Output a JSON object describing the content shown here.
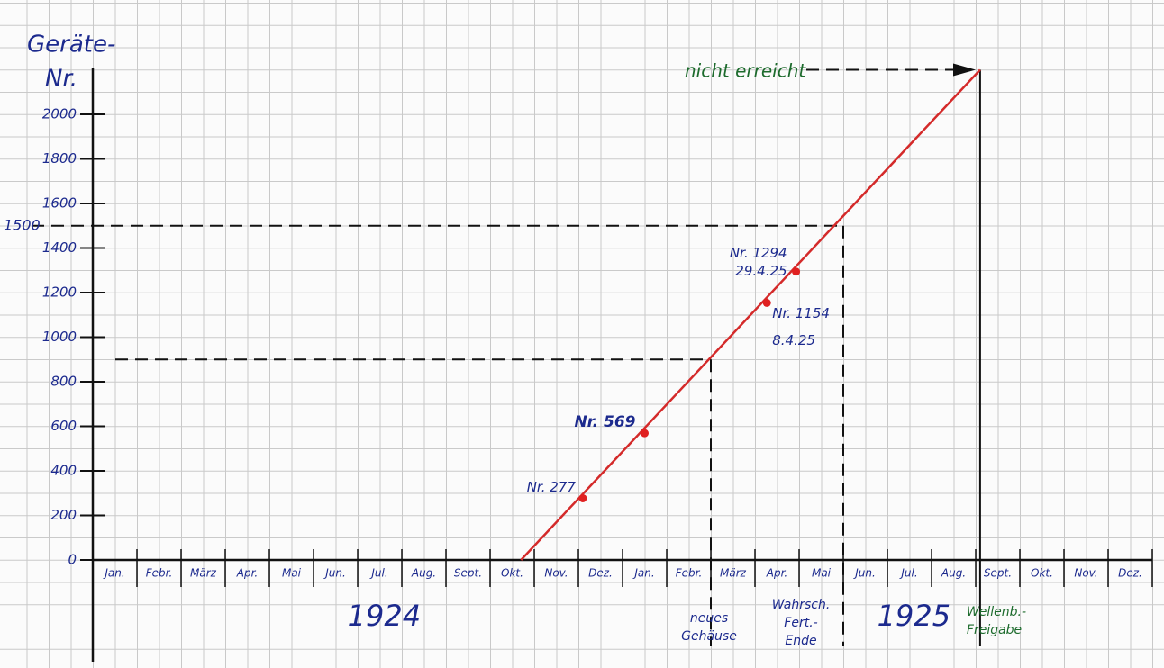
{
  "chart_data": {
    "type": "line",
    "y_label": [
      "Geräte-",
      "Nr."
    ],
    "categories": [
      "Jan.",
      "Febr.",
      "März",
      "Apr.",
      "Mai",
      "Jun.",
      "Jul.",
      "Aug.",
      "Sept.",
      "Okt.",
      "Nov.",
      "Dez.",
      "Jan.",
      "Febr.",
      "März",
      "Apr.",
      "Mai",
      "Jun.",
      "Jul.",
      "Aug.",
      "Sept.",
      "Okt.",
      "Nov.",
      "Dez."
    ],
    "years": [
      "1924",
      "1925"
    ],
    "xlim": [
      0,
      24
    ],
    "ylim": [
      0,
      2200
    ],
    "yticks": [
      0,
      200,
      400,
      600,
      800,
      1000,
      1200,
      1400,
      1600,
      1800,
      2000
    ],
    "series": [
      {
        "color": "#d42a2a",
        "x": [
          9.7,
          20.1
        ],
        "values": [
          0,
          2200
        ]
      }
    ],
    "points": {
      "color": "#e02020",
      "x": [
        11.1,
        12.5,
        15.27,
        15.93
      ],
      "values": [
        277,
        569,
        1154,
        1294
      ],
      "labels": [
        "Nr. 277",
        "Nr. 569",
        "Nr. 1154",
        "Nr. 1294"
      ],
      "dates": [
        null,
        null,
        "8.4.25",
        "29.4.25"
      ]
    },
    "labeled_level": 1500,
    "drop_lines": [
      {
        "x": 14,
        "y": 900,
        "text": [
          "neues",
          "Gehäuse"
        ]
      },
      {
        "x": 17,
        "y": 1500,
        "text": [
          "Wahrsch.",
          "Fert.-",
          "Ende"
        ]
      },
      {
        "x": 20.1,
        "y": 2200,
        "text": [
          "Wellenb.-",
          "Freigabe"
        ]
      }
    ],
    "top_note": "nicht erreicht"
  }
}
